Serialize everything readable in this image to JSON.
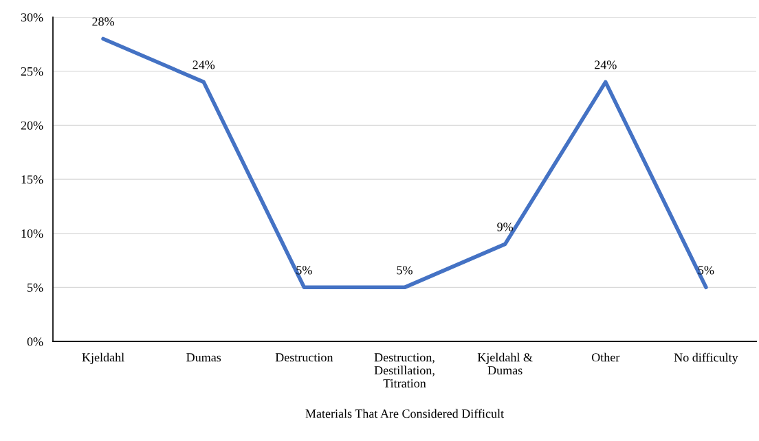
{
  "chart_data": {
    "type": "line",
    "xlabel": "Materials That Are Considered Difficult",
    "categories": [
      "Kjeldahl",
      "Dumas",
      "Destruction",
      "Destruction, Destillation, Titration",
      "Kjeldahl & Dumas",
      "Other",
      "No difficulty"
    ],
    "series": [
      {
        "color": "#4472c4",
        "values": [
          28,
          24,
          5,
          5,
          9,
          24,
          5
        ],
        "value_labels": [
          "28%",
          "24%",
          "5%",
          "5%",
          "9%",
          "24%",
          "5%"
        ]
      }
    ],
    "ylim": [
      0,
      30
    ],
    "yticks": [
      {
        "value": 0,
        "label": "0%"
      },
      {
        "value": 5,
        "label": "5%"
      },
      {
        "value": 10,
        "label": "10%"
      },
      {
        "value": 15,
        "label": "15%"
      },
      {
        "value": 20,
        "label": "20%"
      },
      {
        "value": 25,
        "label": "25%"
      },
      {
        "value": 30,
        "label": "30%"
      }
    ],
    "grid": "y",
    "marker": "none",
    "line_style": "solid"
  }
}
